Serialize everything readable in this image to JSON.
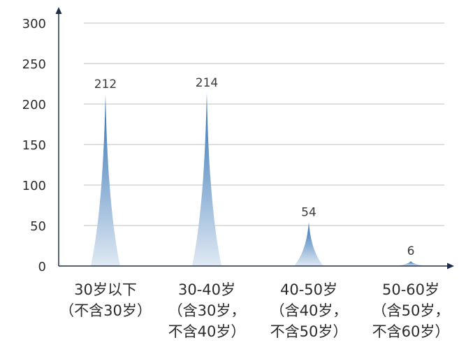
{
  "chart_data": {
    "type": "bar",
    "bar_shape": "spike",
    "categories": [
      [
        "30岁以下",
        "（不含30岁）"
      ],
      [
        "30-40岁",
        "（含30岁，",
        "不含40岁）"
      ],
      [
        "40-50岁",
        "（含40岁，",
        "不含50岁）"
      ],
      [
        "50-60岁",
        "（含50岁，",
        "不含60岁）"
      ]
    ],
    "values": [
      212,
      214,
      54,
      6
    ],
    "data_labels": [
      "212",
      "214",
      "54",
      "6"
    ],
    "title": "",
    "xlabel": "",
    "ylabel": "",
    "ylim": [
      0,
      300
    ],
    "yticks": [
      0,
      50,
      100,
      150,
      200,
      250,
      300
    ],
    "grid": true,
    "legend": "none",
    "colors": {
      "bar_top": "#2e6fb3",
      "bar_bottom": "#dfe9f3",
      "axis": "#1f2d4a",
      "grid": "#bfbfbf"
    }
  }
}
